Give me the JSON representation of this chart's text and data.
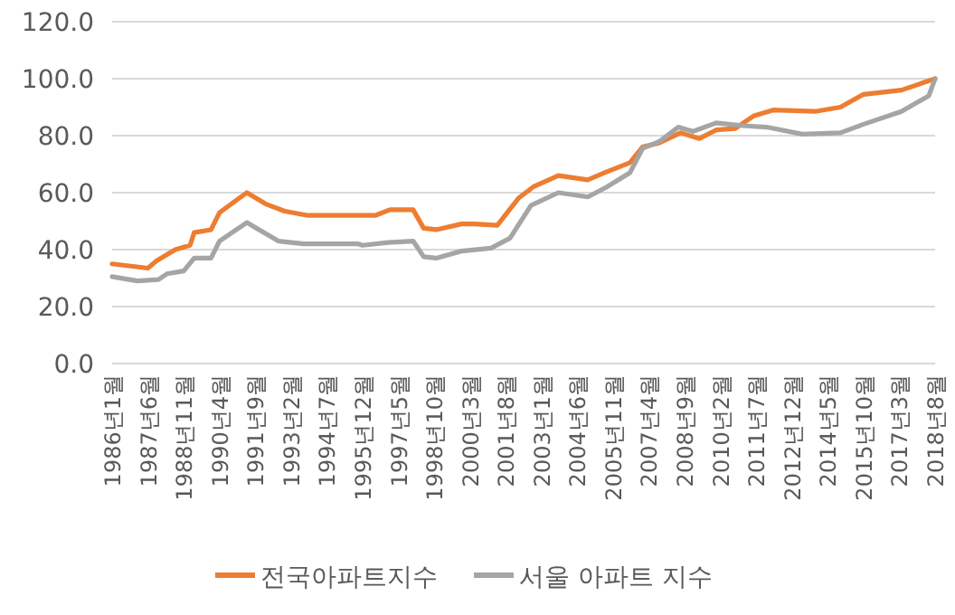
{
  "chart_data": {
    "type": "line",
    "x": [
      "1986-01",
      "1987-06",
      "1987-10",
      "1988-07",
      "1989-02",
      "1989-04",
      "1989-12",
      "1990-04",
      "1991-05",
      "1992-02",
      "1992-11",
      "1993-10",
      "1996-06",
      "1997-01",
      "1997-12",
      "1998-05",
      "1998-11",
      "1999-11",
      "2000-05",
      "2001-04",
      "2002-02",
      "2002-09",
      "2003-09",
      "2004-11",
      "2005-07",
      "2006-07",
      "2007-01",
      "2007-09",
      "2008-07",
      "2009-04",
      "2009-12",
      "2010-09",
      "2011-06",
      "2012-03",
      "2013-11",
      "2014-11",
      "2015-10",
      "2017-04",
      "2018-08"
    ],
    "series": [
      {
        "name": "전국아파트지수",
        "color": "#ed7d31",
        "values": [
          35,
          33.5,
          36,
          40,
          41.5,
          46,
          47,
          53,
          60,
          56,
          53.5,
          52,
          52,
          54,
          54,
          47.5,
          47,
          49,
          49,
          48.5,
          58,
          62,
          66,
          64.5,
          67,
          70.5,
          76,
          77.5,
          81,
          79,
          82,
          82.5,
          87,
          89,
          88.5,
          90,
          94.5,
          96,
          100
        ]
      },
      {
        "name": "서울 아파트 지수",
        "color": "#a5a5a5",
        "x": [
          "1986-01",
          "1987-01",
          "1987-11",
          "1988-03",
          "1988-11",
          "1989-04",
          "1989-12",
          "1990-04",
          "1991-05",
          "1992-01",
          "1992-08",
          "1993-08",
          "1995-10",
          "1995-12",
          "1996-12",
          "1997-12",
          "1998-05",
          "1998-11",
          "1999-11",
          "2001-01",
          "2001-10",
          "2002-08",
          "2003-09",
          "2004-11",
          "2005-08",
          "2006-07",
          "2007-01",
          "2007-09",
          "2008-06",
          "2009-01",
          "2009-12",
          "2011-01",
          "2011-12",
          "2013-05",
          "2014-11",
          "2015-10",
          "2017-04",
          "2018-05",
          "2018-08"
        ],
        "values": [
          30.5,
          29,
          29.5,
          31.5,
          32.5,
          37,
          37,
          43,
          49.5,
          46,
          43,
          42,
          42,
          41.5,
          42.5,
          43,
          37.5,
          37,
          39.5,
          40.5,
          44,
          55.5,
          60,
          58.5,
          62,
          67,
          75.5,
          78,
          83,
          81.5,
          84.5,
          83.5,
          83,
          80.5,
          81,
          84,
          88.5,
          94,
          100
        ]
      }
    ],
    "xlim": [
      "1986-01",
      "2018-08"
    ],
    "xticks": [
      {
        "value": "1986-01",
        "label": "1986년1월"
      },
      {
        "value": "1987-06",
        "label": "1987년6월"
      },
      {
        "value": "1988-11",
        "label": "1988년11월"
      },
      {
        "value": "1990-04",
        "label": "1990년4월"
      },
      {
        "value": "1991-09",
        "label": "1991년9월"
      },
      {
        "value": "1993-02",
        "label": "1993년2월"
      },
      {
        "value": "1994-07",
        "label": "1994년7월"
      },
      {
        "value": "1995-12",
        "label": "1995년12월"
      },
      {
        "value": "1997-05",
        "label": "1997년5월"
      },
      {
        "value": "1998-10",
        "label": "1998년10월"
      },
      {
        "value": "2000-03",
        "label": "2000년3월"
      },
      {
        "value": "2001-08",
        "label": "2001년8월"
      },
      {
        "value": "2003-01",
        "label": "2003년1월"
      },
      {
        "value": "2004-06",
        "label": "2004년6월"
      },
      {
        "value": "2005-11",
        "label": "2005년11월"
      },
      {
        "value": "2007-04",
        "label": "2007년4월"
      },
      {
        "value": "2008-09",
        "label": "2008년9월"
      },
      {
        "value": "2010-02",
        "label": "2010년2월"
      },
      {
        "value": "2011-07",
        "label": "2011년7월"
      },
      {
        "value": "2012-12",
        "label": "2012년12월"
      },
      {
        "value": "2014-05",
        "label": "2014년5월"
      },
      {
        "value": "2015-10",
        "label": "2015년10월"
      },
      {
        "value": "2017-03",
        "label": "2017년3월"
      },
      {
        "value": "2018-08",
        "label": "2018년8월"
      }
    ],
    "ylim": [
      0,
      120
    ],
    "yticks": [
      {
        "value": 0,
        "label": "0.0"
      },
      {
        "value": 20,
        "label": "20.0"
      },
      {
        "value": 40,
        "label": "40.0"
      },
      {
        "value": 60,
        "label": "60.0"
      },
      {
        "value": 80,
        "label": "80.0"
      },
      {
        "value": 100,
        "label": "100.0"
      },
      {
        "value": 120,
        "label": "120.0"
      }
    ],
    "grid": "y",
    "legend": "bottom"
  }
}
